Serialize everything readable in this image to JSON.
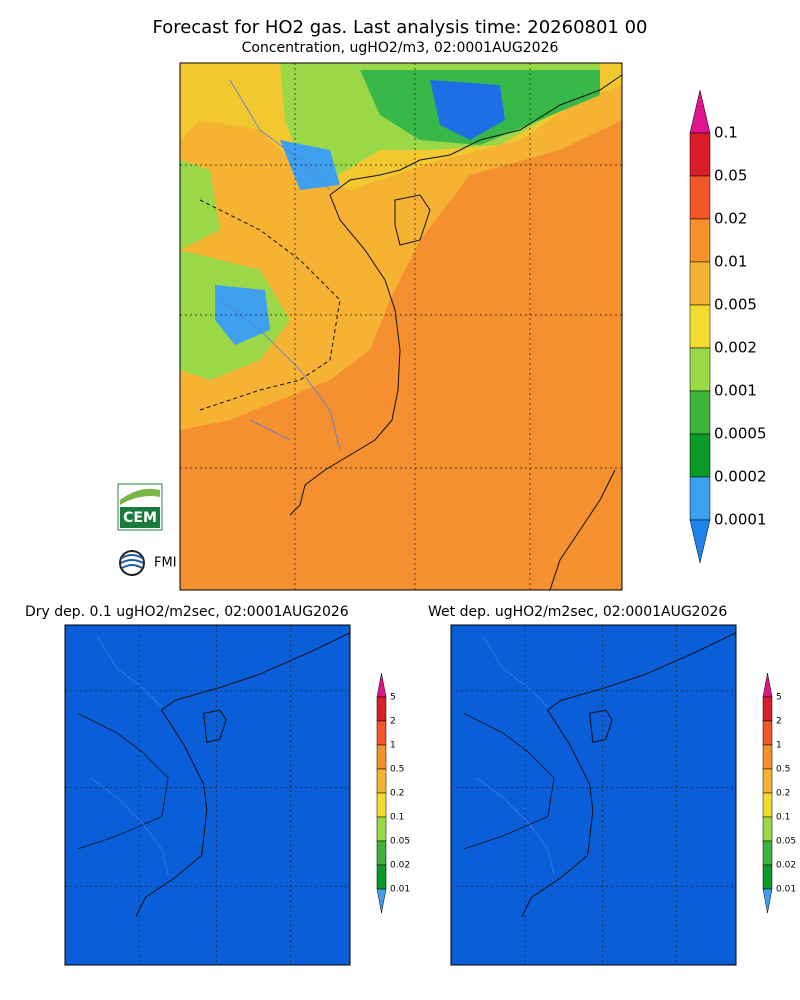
{
  "header": {
    "title": "Forecast for HO2 gas. Last analysis time: 20260801 00",
    "subtitle": "Concentration, ugHO2/m3, 02:0001AUG2026"
  },
  "main_colorbar": {
    "labels": [
      "0.1",
      "0.05",
      "0.02",
      "0.01",
      "0.005",
      "0.002",
      "0.001",
      "0.0005",
      "0.0002",
      "0.0001"
    ]
  },
  "logos": {
    "cem": "CEM",
    "fmi": "FMI"
  },
  "panels": [
    {
      "title": "Dry dep. 0.1 ugHO2/m2sec, 02:0001AUG2026",
      "colorbar": [
        "5",
        "2",
        "1",
        "0.5",
        "0.2",
        "0.1",
        "0.05",
        "0.02",
        "0.01"
      ]
    },
    {
      "title": "Wet dep. ugHO2/m2sec, 02:0001AUG2026",
      "colorbar": [
        "5",
        "2",
        "1",
        "0.5",
        "0.2",
        "0.1",
        "0.05",
        "0.02",
        "0.01"
      ]
    }
  ]
}
